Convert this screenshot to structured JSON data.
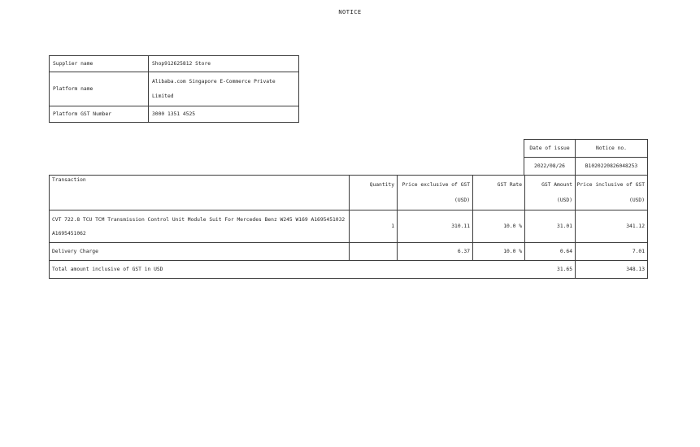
{
  "title": "NOTICE",
  "supplier": {
    "rows": [
      {
        "label": "Supplier name",
        "value": "Shop912625812 Store"
      },
      {
        "label": "Platform name",
        "value_lines": [
          "Alibaba.com Singapore E-Commerce Private",
          "Limited"
        ]
      },
      {
        "label": "Platform GST Number",
        "value": "3000 1351 4525"
      }
    ]
  },
  "notice_meta": {
    "date_of_issue_label": "Date of issue",
    "notice_no_label": "Notice no.",
    "date_of_issue": "2022/08/26",
    "notice_no": "B1020220826048253"
  },
  "transactions": {
    "headers": {
      "transaction": "Transaction",
      "quantity": "Quantity",
      "price_exclusive": "Price exclusive of GST",
      "price_exclusive_unit": "(USD)",
      "gst_rate": "GST Rate",
      "gst_amount": "GST Amount",
      "gst_amount_unit": "(USD)",
      "price_inclusive": "Price inclusive of GST",
      "price_inclusive_unit": "(USD)"
    },
    "rows": [
      {
        "description_lines": [
          "CVT 722.8 TCU TCM Transmission Control Unit Module Suit For Mercedes Benz W245 W169 A1695451032",
          "A1695451062"
        ],
        "quantity": "1",
        "price_exclusive": "310.11",
        "gst_rate": "10.0 %",
        "gst_amount": "31.01",
        "price_inclusive": "341.12"
      },
      {
        "description": "Delivery Charge",
        "quantity": "",
        "price_exclusive": "6.37",
        "gst_rate": "10.0 %",
        "gst_amount": "0.64",
        "price_inclusive": "7.01"
      }
    ],
    "total": {
      "label": "Total amount inclusive of GST in USD",
      "gst_amount": "31.65",
      "price_inclusive": "348.13"
    }
  }
}
